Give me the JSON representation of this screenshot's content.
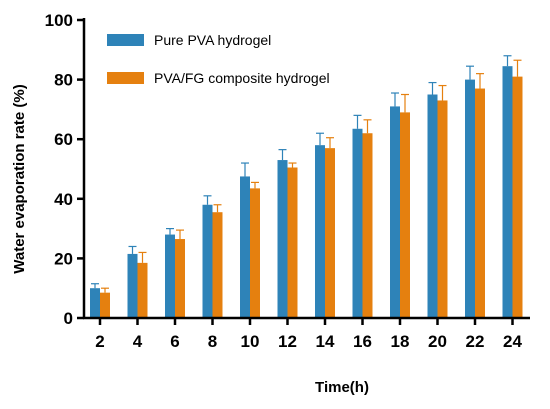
{
  "chart_data": {
    "type": "bar",
    "title": "",
    "xlabel": "Time(h)",
    "ylabel": "Water evaporation rate (%)",
    "ylim": [
      0,
      100
    ],
    "yticks": [
      0,
      20,
      40,
      60,
      80,
      100
    ],
    "categories": [
      "2",
      "4",
      "6",
      "8",
      "10",
      "12",
      "14",
      "16",
      "18",
      "20",
      "22",
      "24"
    ],
    "series": [
      {
        "name": "Pure PVA hydrogel",
        "color": "#2e83b8",
        "values": [
          10,
          21.5,
          28,
          38,
          47.5,
          53,
          58,
          63.5,
          71,
          75,
          80,
          84.5
        ],
        "errors": [
          1.5,
          2.5,
          2,
          3,
          4.5,
          3.5,
          4,
          4.5,
          4.5,
          4,
          4.5,
          3.5
        ]
      },
      {
        "name": "PVA/FG composite hydrogel",
        "color": "#e5800f",
        "values": [
          8.5,
          18.5,
          26.5,
          35.5,
          43.5,
          50.5,
          57,
          62,
          69,
          73,
          77,
          81
        ],
        "errors": [
          1.5,
          3.5,
          3,
          2.5,
          2,
          1.5,
          3.5,
          4.5,
          6,
          5,
          5,
          5.5
        ]
      }
    ],
    "grid": false,
    "legend_position": "top-left"
  }
}
